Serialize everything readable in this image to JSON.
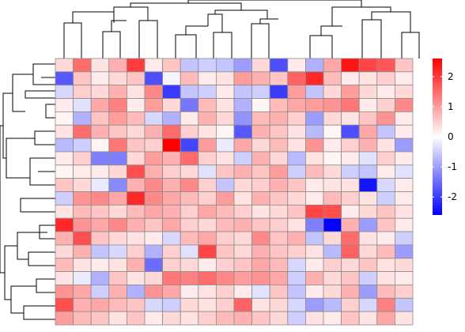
{
  "chart_data": {
    "type": "heatmap",
    "title": "",
    "xlabel": "",
    "ylabel": "",
    "n_rows": 20,
    "n_cols": 20,
    "color_scale": {
      "low": "#0000FF",
      "mid": "#FFFFFF",
      "high": "#FF0000",
      "range": [
        -2.6,
        2.6
      ]
    },
    "legend": {
      "position": "right",
      "ticks": [
        {
          "value": 2,
          "label": "2"
        },
        {
          "value": 1,
          "label": "1"
        },
        {
          "value": 0,
          "label": "0"
        },
        {
          "value": -1,
          "label": "-1"
        },
        {
          "value": -2,
          "label": "-2"
        }
      ]
    },
    "values": [
      [
        0.4,
        1.5,
        0.3,
        0.8,
        2.0,
        0.2,
        0.6,
        -0.6,
        -0.5,
        -0.6,
        -1.0,
        0.4,
        -1.8,
        0.2,
        -0.8,
        0.9,
        2.4,
        1.9,
        1.7,
        0.6
      ],
      [
        -1.7,
        0.6,
        0.2,
        0.4,
        0.6,
        -1.8,
        -0.1,
        0.7,
        0.2,
        0.3,
        1.0,
        0.8,
        0.6,
        1.6,
        2.2,
        0.7,
        0.2,
        0.3,
        0.5,
        0.2
      ],
      [
        -0.4,
        0.5,
        0.4,
        0.8,
        0.3,
        1.2,
        -2.0,
        -0.6,
        -0.5,
        0.2,
        -0.6,
        -0.5,
        -2.0,
        1.0,
        -0.6,
        0.4,
        1.0,
        0.4,
        0.2,
        0.4
      ],
      [
        0.2,
        -0.3,
        0.9,
        1.3,
        0.2,
        1.0,
        0.4,
        -1.4,
        0.7,
        0.3,
        -0.8,
        0.1,
        0.7,
        0.9,
        1.0,
        1.1,
        1.4,
        0.2,
        0.5,
        1.2
      ],
      [
        0.1,
        -0.8,
        0.6,
        1.0,
        0.7,
        -0.4,
        -0.8,
        0.2,
        0.8,
        0.4,
        -1.1,
        0.7,
        0.8,
        0.5,
        -1.0,
        0.4,
        0.3,
        0.6,
        1.1,
        0.2
      ],
      [
        0.3,
        1.5,
        0.8,
        0.6,
        0.4,
        0.8,
        1.5,
        0.5,
        0.3,
        0.1,
        -1.7,
        0.8,
        0.6,
        0.3,
        -0.7,
        0.1,
        -1.8,
        0.9,
        -0.6,
        0.2
      ],
      [
        -0.7,
        -0.5,
        0.1,
        1.4,
        0.6,
        0.5,
        2.6,
        -1.9,
        1.0,
        -0.2,
        0.9,
        0.4,
        0.7,
        0.3,
        1.1,
        0.2,
        0.5,
        0.8,
        0.3,
        -1.0
      ],
      [
        0.2,
        0.5,
        -1.3,
        -1.3,
        0.4,
        1.0,
        0.8,
        1.5,
        0.5,
        0.3,
        -0.5,
        0.8,
        0.4,
        -0.7,
        0.3,
        0.1,
        0.2,
        -0.3,
        0.5,
        0.2
      ],
      [
        0.1,
        0.2,
        0.2,
        0.4,
        1.8,
        0.8,
        0.5,
        0.4,
        -0.3,
        0.6,
        0.8,
        0.6,
        1.0,
        -0.5,
        0.7,
        0.4,
        -0.5,
        -0.6,
        0.2,
        -0.3
      ],
      [
        0.6,
        0.4,
        -0.2,
        -1.2,
        0.8,
        1.2,
        0.8,
        1.2,
        0.5,
        -0.6,
        0.4,
        0.5,
        0.8,
        0.6,
        0.2,
        0.3,
        0.3,
        -2.4,
        -0.4,
        0.2
      ],
      [
        -0.5,
        1.1,
        1.2,
        0.9,
        2.2,
        1.2,
        0.9,
        0.7,
        0.5,
        1.0,
        0.3,
        0.8,
        0.6,
        0.4,
        0.2,
        0.7,
        0.5,
        0.3,
        -0.5,
        0.2
      ],
      [
        0.3,
        0.7,
        0.6,
        0.4,
        0.7,
        0.9,
        0.8,
        0.5,
        0.9,
        0.7,
        0.5,
        0.3,
        0.4,
        0.6,
        1.9,
        1.8,
        0.2,
        0.4,
        0.6,
        0.3
      ],
      [
        2.2,
        1.1,
        0.9,
        1.2,
        0.8,
        0.6,
        0.9,
        0.5,
        0.4,
        0.7,
        0.8,
        0.6,
        0.5,
        0.3,
        -1.3,
        -2.6,
        0.8,
        -1.0,
        0.6,
        0.2
      ],
      [
        0.8,
        1.8,
        0.6,
        0.4,
        0.3,
        0.2,
        -0.4,
        0.7,
        0.9,
        0.5,
        0.4,
        1.2,
        0.6,
        0.8,
        -0.6,
        0.4,
        1.5,
        0.3,
        0.2,
        -0.5
      ],
      [
        0.4,
        0.8,
        -0.6,
        -0.4,
        0.5,
        -0.8,
        0.5,
        -0.3,
        1.9,
        0.6,
        0.4,
        0.8,
        0.6,
        0.5,
        0.3,
        -0.7,
        1.6,
        0.4,
        0.7,
        -1.0
      ],
      [
        0.7,
        0.3,
        0.2,
        0.3,
        0.8,
        -1.5,
        0.5,
        0.4,
        0.2,
        0.5,
        0.6,
        0.9,
        0.7,
        -0.4,
        0.2,
        0.5,
        0.4,
        0.6,
        0.3,
        0.4
      ],
      [
        0.3,
        -0.2,
        -0.8,
        0.6,
        0.3,
        0.4,
        1.4,
        1.3,
        1.5,
        1.2,
        1.0,
        1.1,
        0.9,
        -0.5,
        0.8,
        0.4,
        0.6,
        -0.5,
        0.3,
        0.2
      ],
      [
        1.1,
        0.9,
        -0.5,
        0.8,
        -0.8,
        1.1,
        0.9,
        0.2,
        0.3,
        0.5,
        0.2,
        -0.3,
        0.6,
        -0.6,
        0.2,
        0.4,
        0.8,
        -1.0,
        0.7,
        0.5
      ],
      [
        1.8,
        0.8,
        0.9,
        0.7,
        0.6,
        -0.4,
        -0.5,
        0.4,
        0.3,
        0.5,
        1.6,
        0.3,
        0.4,
        -0.4,
        -1.0,
        -0.7,
        0.5,
        -0.4,
        1.3,
        -0.6
      ],
      [
        1.0,
        0.7,
        0.6,
        0.3,
        0.6,
        0.2,
        0.4,
        0.3,
        0.5,
        0.7,
        0.8,
        0.6,
        0.4,
        -0.5,
        0.3,
        0.2,
        0.6,
        0.3,
        0.9,
        0.3
      ]
    ]
  }
}
